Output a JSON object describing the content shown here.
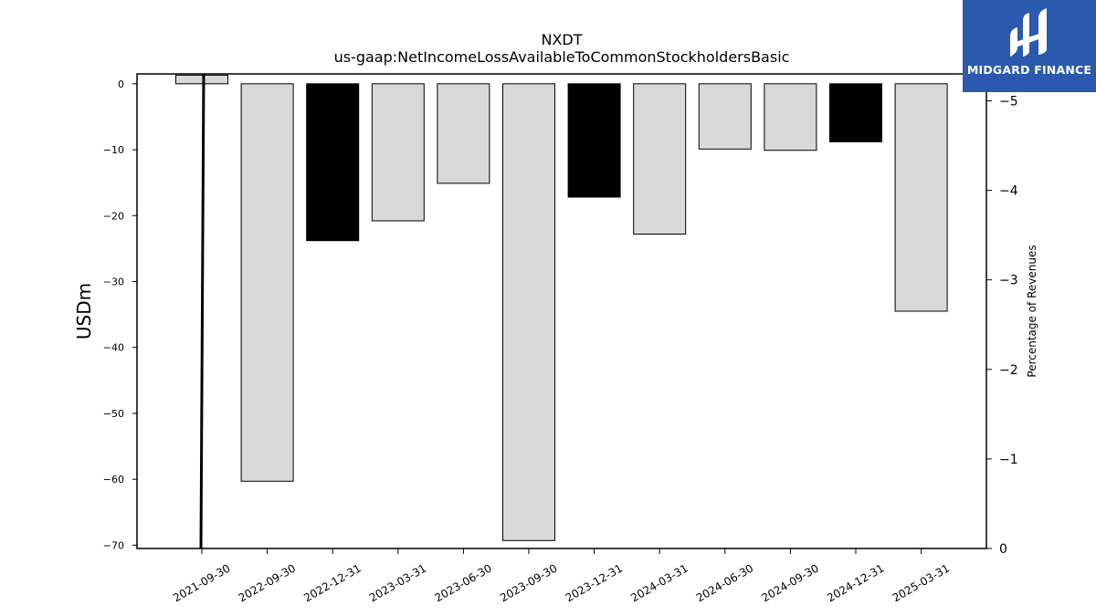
{
  "chart_data": {
    "type": "bar",
    "title": "NXDT",
    "subtitle": "us-gaap:NetIncomeLossAvailableToCommonStockholdersBasic",
    "ylabel": "USDm",
    "ylabel_right": "Percentage of Revenues",
    "ylim": [
      -70.5,
      1.5
    ],
    "ylim_right": [
      0,
      -5.3
    ],
    "yticks": [
      "0",
      "−10",
      "−20",
      "−30",
      "−40",
      "−50",
      "−60",
      "−70"
    ],
    "yticks_right": [
      "0",
      "−1",
      "−2",
      "−3",
      "−4",
      "−5"
    ],
    "categories": [
      "2021-09-30",
      "2022-09-30",
      "2022-12-31",
      "2023-03-31",
      "2023-06-30",
      "2023-09-30",
      "2023-12-31",
      "2024-03-31",
      "2024-06-30",
      "2024-09-30",
      "2024-12-31",
      "2025-03-31"
    ],
    "values": [
      1.3,
      -60.3,
      -23.8,
      -20.8,
      -15.1,
      -69.3,
      -17.2,
      -22.8,
      -9.9,
      -10.1,
      -8.8,
      -34.5
    ],
    "highlight": [
      false,
      false,
      true,
      false,
      false,
      false,
      true,
      false,
      false,
      false,
      true,
      false
    ],
    "line_series": {
      "axis": "right",
      "x": [
        "2021-09-30",
        "2021-09-30"
      ],
      "values": [
        0,
        -5.3
      ]
    },
    "colors": {
      "bar": "#d9d9d9",
      "highlight": "#000000",
      "edge": "#000000",
      "line": "#000000"
    },
    "grid": false,
    "legend": "none"
  },
  "brand": {
    "name": "MIDGARD FINANCE",
    "bg_color": "#2b59ad"
  }
}
